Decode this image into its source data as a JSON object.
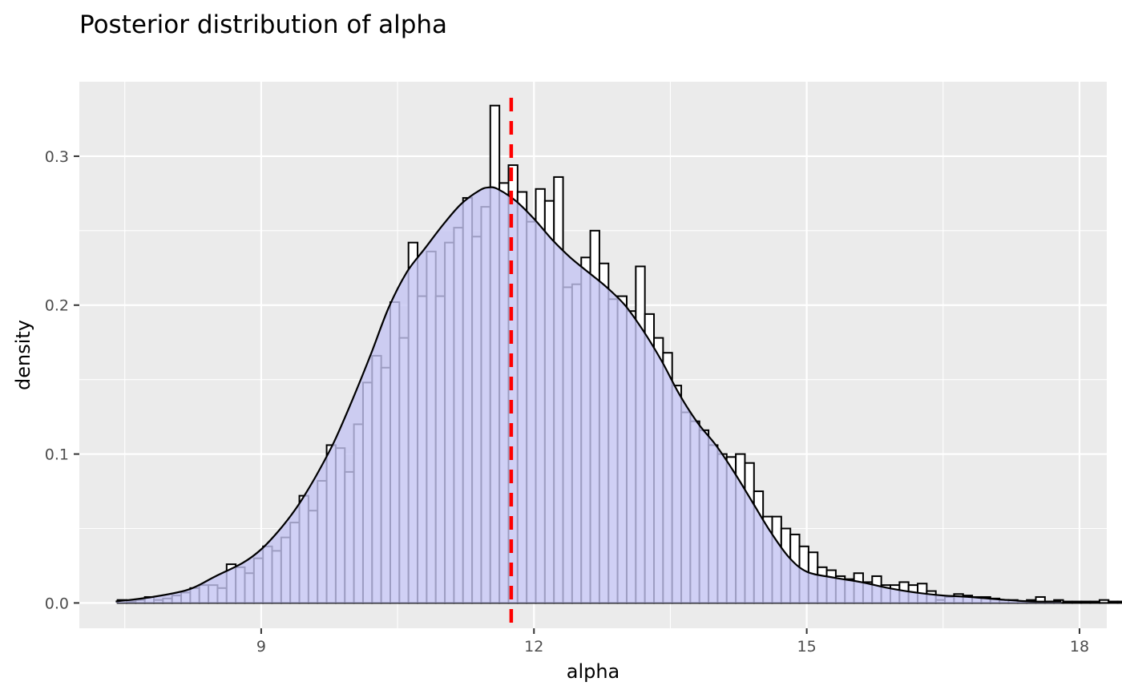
{
  "chart_data": {
    "type": "bar",
    "title": "Posterior distribution of alpha",
    "xlabel": "alpha",
    "ylabel": "density",
    "xlim": [
      7.0,
      18.3
    ],
    "ylim": [
      -0.017,
      0.35
    ],
    "x_ticks": [
      9,
      12,
      15,
      18
    ],
    "x_tick_labels": [
      "9",
      "12",
      "15",
      "18"
    ],
    "y_ticks": [
      0.0,
      0.1,
      0.2,
      0.3
    ],
    "y_tick_labels": [
      "0.0",
      "0.1",
      "0.2",
      "0.3"
    ],
    "grid": true,
    "panel_background": "#ebebeb",
    "grid_color": "#ffffff",
    "bar_fill": "#ffffff",
    "bar_outline": "#000000",
    "density_fill": "#c4c4f2",
    "density_outline": "#000000",
    "vline": {
      "x": 11.75,
      "color": "#ff0000",
      "style": "dashed"
    },
    "histogram": {
      "start": 7.42,
      "bin_width": 0.1,
      "values": [
        0.002,
        0.001,
        0.002,
        0.004,
        0.002,
        0.003,
        0.005,
        0.007,
        0.01,
        0.012,
        0.012,
        0.01,
        0.026,
        0.024,
        0.02,
        0.03,
        0.038,
        0.035,
        0.044,
        0.054,
        0.072,
        0.062,
        0.082,
        0.106,
        0.104,
        0.088,
        0.12,
        0.148,
        0.166,
        0.158,
        0.202,
        0.178,
        0.242,
        0.206,
        0.236,
        0.206,
        0.242,
        0.252,
        0.272,
        0.246,
        0.266,
        0.334,
        0.282,
        0.294,
        0.276,
        0.256,
        0.278,
        0.27,
        0.286,
        0.212,
        0.214,
        0.232,
        0.25,
        0.228,
        0.204,
        0.206,
        0.196,
        0.226,
        0.194,
        0.178,
        0.168,
        0.146,
        0.128,
        0.122,
        0.116,
        0.106,
        0.1,
        0.098,
        0.1,
        0.094,
        0.075,
        0.058,
        0.058,
        0.05,
        0.046,
        0.038,
        0.034,
        0.024,
        0.022,
        0.018,
        0.016,
        0.02,
        0.014,
        0.018,
        0.012,
        0.012,
        0.014,
        0.012,
        0.013,
        0.008,
        0.002,
        0.004,
        0.006,
        0.005,
        0.004,
        0.004,
        0.003,
        0.002,
        0.002,
        0.001,
        0.002,
        0.004,
        0.001,
        0.002,
        0.001,
        0.001,
        0.001,
        0.001,
        0.002,
        0.001,
        0.001,
        0.001,
        0.001,
        0.001,
        0.002
      ]
    },
    "density": {
      "x": [
        7.4,
        7.8,
        8.2,
        8.5,
        8.8,
        9.0,
        9.2,
        9.4,
        9.6,
        9.8,
        10.0,
        10.2,
        10.4,
        10.6,
        10.8,
        11.0,
        11.2,
        11.4,
        11.5,
        11.6,
        11.8,
        12.0,
        12.2,
        12.4,
        12.6,
        12.8,
        13.0,
        13.2,
        13.4,
        13.6,
        13.8,
        14.0,
        14.2,
        14.4,
        14.6,
        14.8,
        15.0,
        15.3,
        15.6,
        15.9,
        16.2,
        16.5,
        16.8,
        17.2,
        17.5,
        17.8
      ],
      "y": [
        0.001,
        0.004,
        0.009,
        0.018,
        0.027,
        0.036,
        0.049,
        0.065,
        0.085,
        0.108,
        0.136,
        0.166,
        0.198,
        0.222,
        0.238,
        0.254,
        0.268,
        0.277,
        0.279,
        0.278,
        0.27,
        0.258,
        0.244,
        0.232,
        0.222,
        0.212,
        0.2,
        0.183,
        0.163,
        0.14,
        0.121,
        0.106,
        0.088,
        0.068,
        0.048,
        0.031,
        0.021,
        0.017,
        0.014,
        0.01,
        0.007,
        0.005,
        0.004,
        0.002,
        0.001,
        0.001
      ]
    }
  }
}
